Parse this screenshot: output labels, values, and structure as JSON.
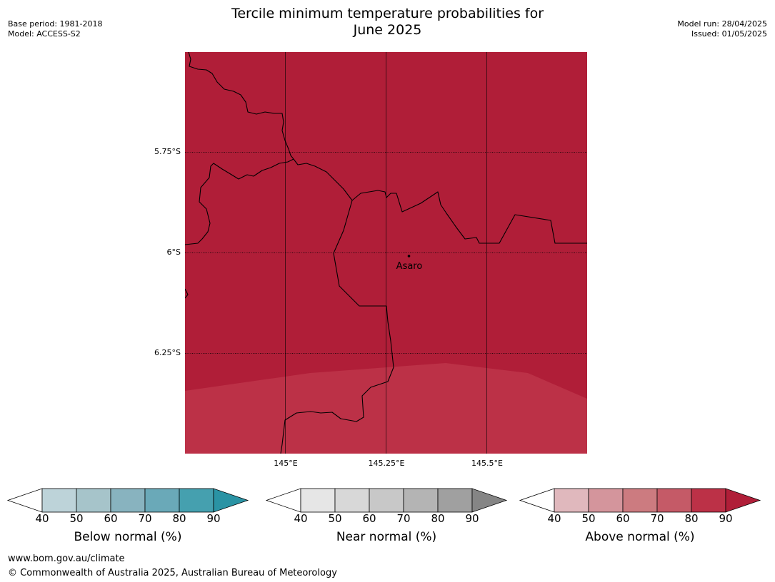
{
  "title": {
    "line1": "Tercile minimum temperature probabilities for",
    "line2": "June 2025"
  },
  "meta": {
    "base_period": "Base period: 1981-2018",
    "model": "Model: ACCESS-S2",
    "model_run": "Model run: 28/04/2025",
    "issued": "Issued: 01/05/2025"
  },
  "map": {
    "lat_labels": [
      "5.75°S",
      "6°S",
      "6.25°S"
    ],
    "lon_labels": [
      "145°E",
      "145.25°E",
      "145.5°E"
    ],
    "place": "Asaro",
    "fill_colors": {
      "above_90": "#b01e38",
      "above_80": "#bc3147"
    },
    "border_color": "#000000"
  },
  "colorbars": [
    {
      "name": "below",
      "title": "Below normal (%)",
      "ticks": [
        "40",
        "50",
        "60",
        "70",
        "80",
        "90"
      ],
      "colors": [
        "#ffffff",
        "#bdd3d9",
        "#a6c4ca",
        "#88b3bf",
        "#6aa9b8",
        "#45a0af",
        "#2a93a4"
      ]
    },
    {
      "name": "near",
      "title": "Near normal (%)",
      "ticks": [
        "40",
        "50",
        "60",
        "70",
        "80",
        "90"
      ],
      "colors": [
        "#ffffff",
        "#e6e6e6",
        "#d8d8d8",
        "#c8c8c8",
        "#b4b4b4",
        "#a0a0a0",
        "#858585"
      ]
    },
    {
      "name": "above",
      "title": "Above normal (%)",
      "ticks": [
        "40",
        "50",
        "60",
        "70",
        "80",
        "90"
      ],
      "colors": [
        "#ffffff",
        "#e0b8bd",
        "#d4959c",
        "#cc7b80",
        "#c55a67",
        "#bc3147",
        "#b01e38"
      ]
    }
  ],
  "footer": {
    "url": "www.bom.gov.au/climate",
    "copyright": "© Commonwealth of Australia 2025, Australian Bureau of Meteorology"
  }
}
